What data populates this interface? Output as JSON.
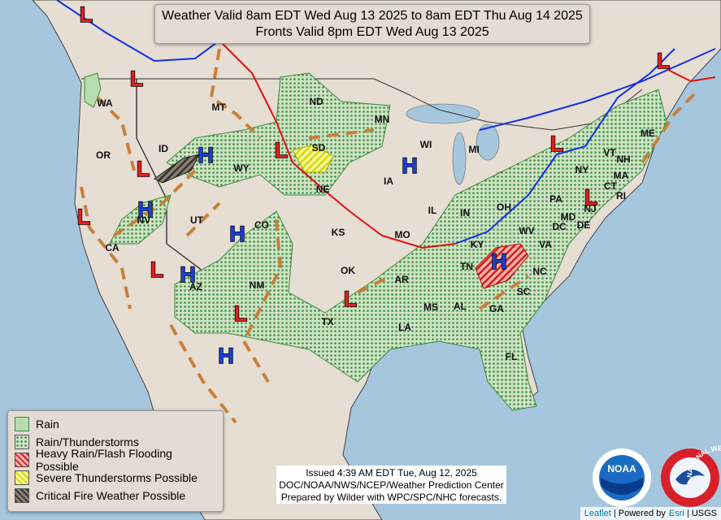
{
  "header": {
    "lines": [
      "Weather Valid 8am EDT Wed Aug 13 2025 to 8am EDT Thu Aug 14 2025",
      "Fronts Valid 8pm EDT Wed Aug 13 2025"
    ]
  },
  "states": [
    "WA",
    "OR",
    "CA",
    "ID",
    "NV",
    "MT",
    "WY",
    "UT",
    "AZ",
    "CO",
    "NM",
    "ND",
    "SD",
    "NE",
    "KS",
    "OK",
    "TX",
    "MN",
    "IA",
    "MO",
    "AR",
    "LA",
    "WI",
    "IL",
    "MI",
    "IN",
    "OH",
    "KY",
    "TN",
    "MS",
    "AL",
    "GA",
    "FL",
    "SC",
    "NC",
    "VA",
    "WV",
    "PA",
    "NY",
    "ME",
    "VT",
    "NH",
    "MA",
    "CT",
    "RI",
    "NJ",
    "DE",
    "MD",
    "DC"
  ],
  "pressure_centers": [
    "L",
    "L",
    "L",
    "L",
    "L",
    "L",
    "L",
    "L",
    "L",
    "L",
    "L",
    "H",
    "H",
    "H",
    "H",
    "H",
    "H",
    "H"
  ],
  "legend": {
    "items": [
      "Rain",
      "Rain/Thunderstorms",
      "Heavy Rain/Flash Flooding Possible",
      "Severe Thunderstorms Possible",
      "Critical Fire Weather Possible"
    ]
  },
  "issued": {
    "lines": [
      "Issued  4:39 AM EDT Tue, Aug 12, 2025",
      "DOC/NOAA/NWS/NCEP/Weather Prediction Center",
      "Prepared by Wilder with WPC/SPC/NHC forecasts."
    ]
  },
  "logos": {
    "noaa": "NOAA",
    "nws": "NATIONAL WEATHER SERVICE"
  },
  "attribution": [
    "Leaflet",
    "Powered by",
    "Esri",
    "USGS"
  ]
}
